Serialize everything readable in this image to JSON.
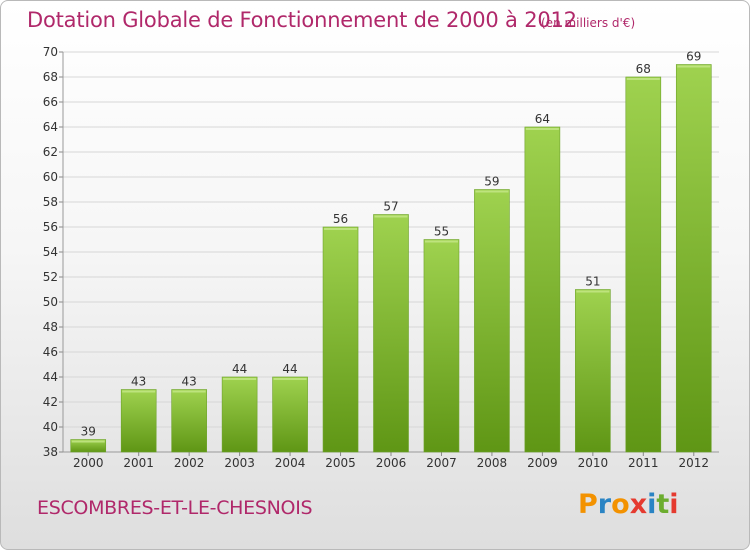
{
  "title": "Dotation Globale de Fonctionnement de 2000 à 2012",
  "subtitle": "(en milliers d'€)",
  "commune": "ESCOMBRES-ET-LE-CHESNOIS",
  "brand": {
    "letters": [
      "P",
      "r",
      "o",
      "x",
      "i",
      "t",
      "i"
    ],
    "colors": [
      "#f39200",
      "#2a84c4",
      "#f39200",
      "#e53a2f",
      "#2a84c4",
      "#6cad2f",
      "#e53a2f"
    ]
  },
  "colors": {
    "title": "#b0286a",
    "bar_light": "#9fd24f",
    "bar_dark": "#5f9615",
    "grid": "#d7d7d7"
  },
  "chart_data": {
    "type": "bar",
    "title": "Dotation Globale de Fonctionnement de 2000 à 2012",
    "subtitle": "(en milliers d'€)",
    "categories": [
      "2000",
      "2001",
      "2002",
      "2003",
      "2004",
      "2005",
      "2006",
      "2007",
      "2008",
      "2009",
      "2010",
      "2011",
      "2012"
    ],
    "values": [
      39,
      43,
      43,
      44,
      44,
      56,
      57,
      55,
      59,
      64,
      51,
      68,
      69
    ],
    "ylim": [
      38,
      70
    ],
    "yticks": [
      38,
      40,
      42,
      44,
      46,
      48,
      50,
      52,
      54,
      56,
      58,
      60,
      62,
      64,
      66,
      68,
      70
    ],
    "grid": true,
    "legend": false
  }
}
